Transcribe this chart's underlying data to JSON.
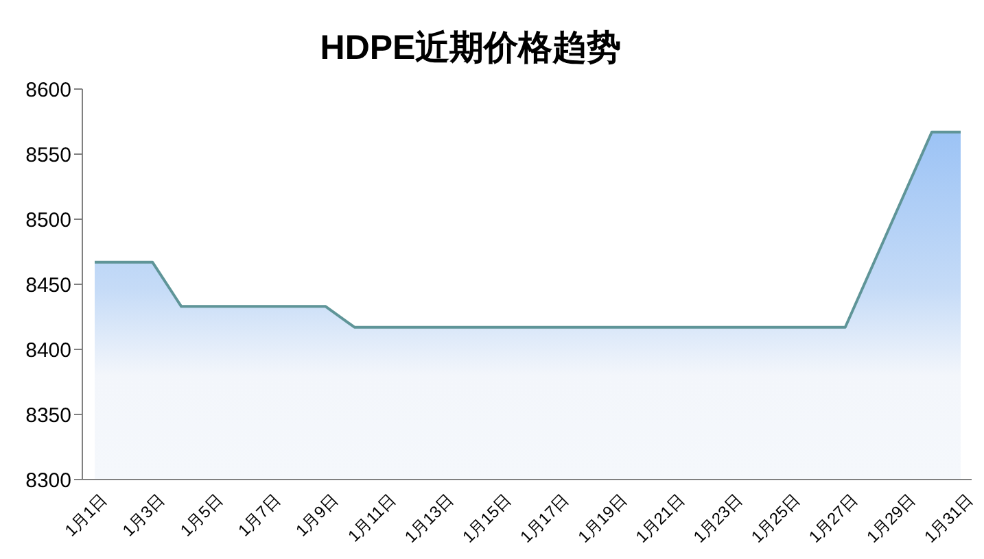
{
  "chart_data": {
    "type": "area",
    "title": "HDPE近期价格趋势",
    "categories": [
      "1月1日",
      null,
      "1月3日",
      null,
      "1月5日",
      null,
      "1月7日",
      null,
      "1月9日",
      null,
      "1月11日",
      null,
      "1月13日",
      null,
      "1月15日",
      null,
      "1月17日",
      null,
      "1月19日",
      null,
      "1月21日",
      null,
      "1月23日",
      null,
      "1月25日",
      null,
      "1月27日",
      null,
      "1月29日",
      null,
      "1月31日"
    ],
    "values": [
      8467,
      8467,
      8467,
      8433,
      8433,
      8433,
      8433,
      8433,
      8433,
      8417,
      8417,
      8417,
      8417,
      8417,
      8417,
      8417,
      8417,
      8417,
      8417,
      8417,
      8417,
      8417,
      8417,
      8417,
      8417,
      8417,
      8417,
      8467,
      8517,
      8567,
      8567
    ],
    "color": "#5f9598",
    "ylim": [
      8300,
      8600
    ],
    "yticks": [
      8300,
      8350,
      8400,
      8450,
      8500,
      8550,
      8600
    ]
  }
}
